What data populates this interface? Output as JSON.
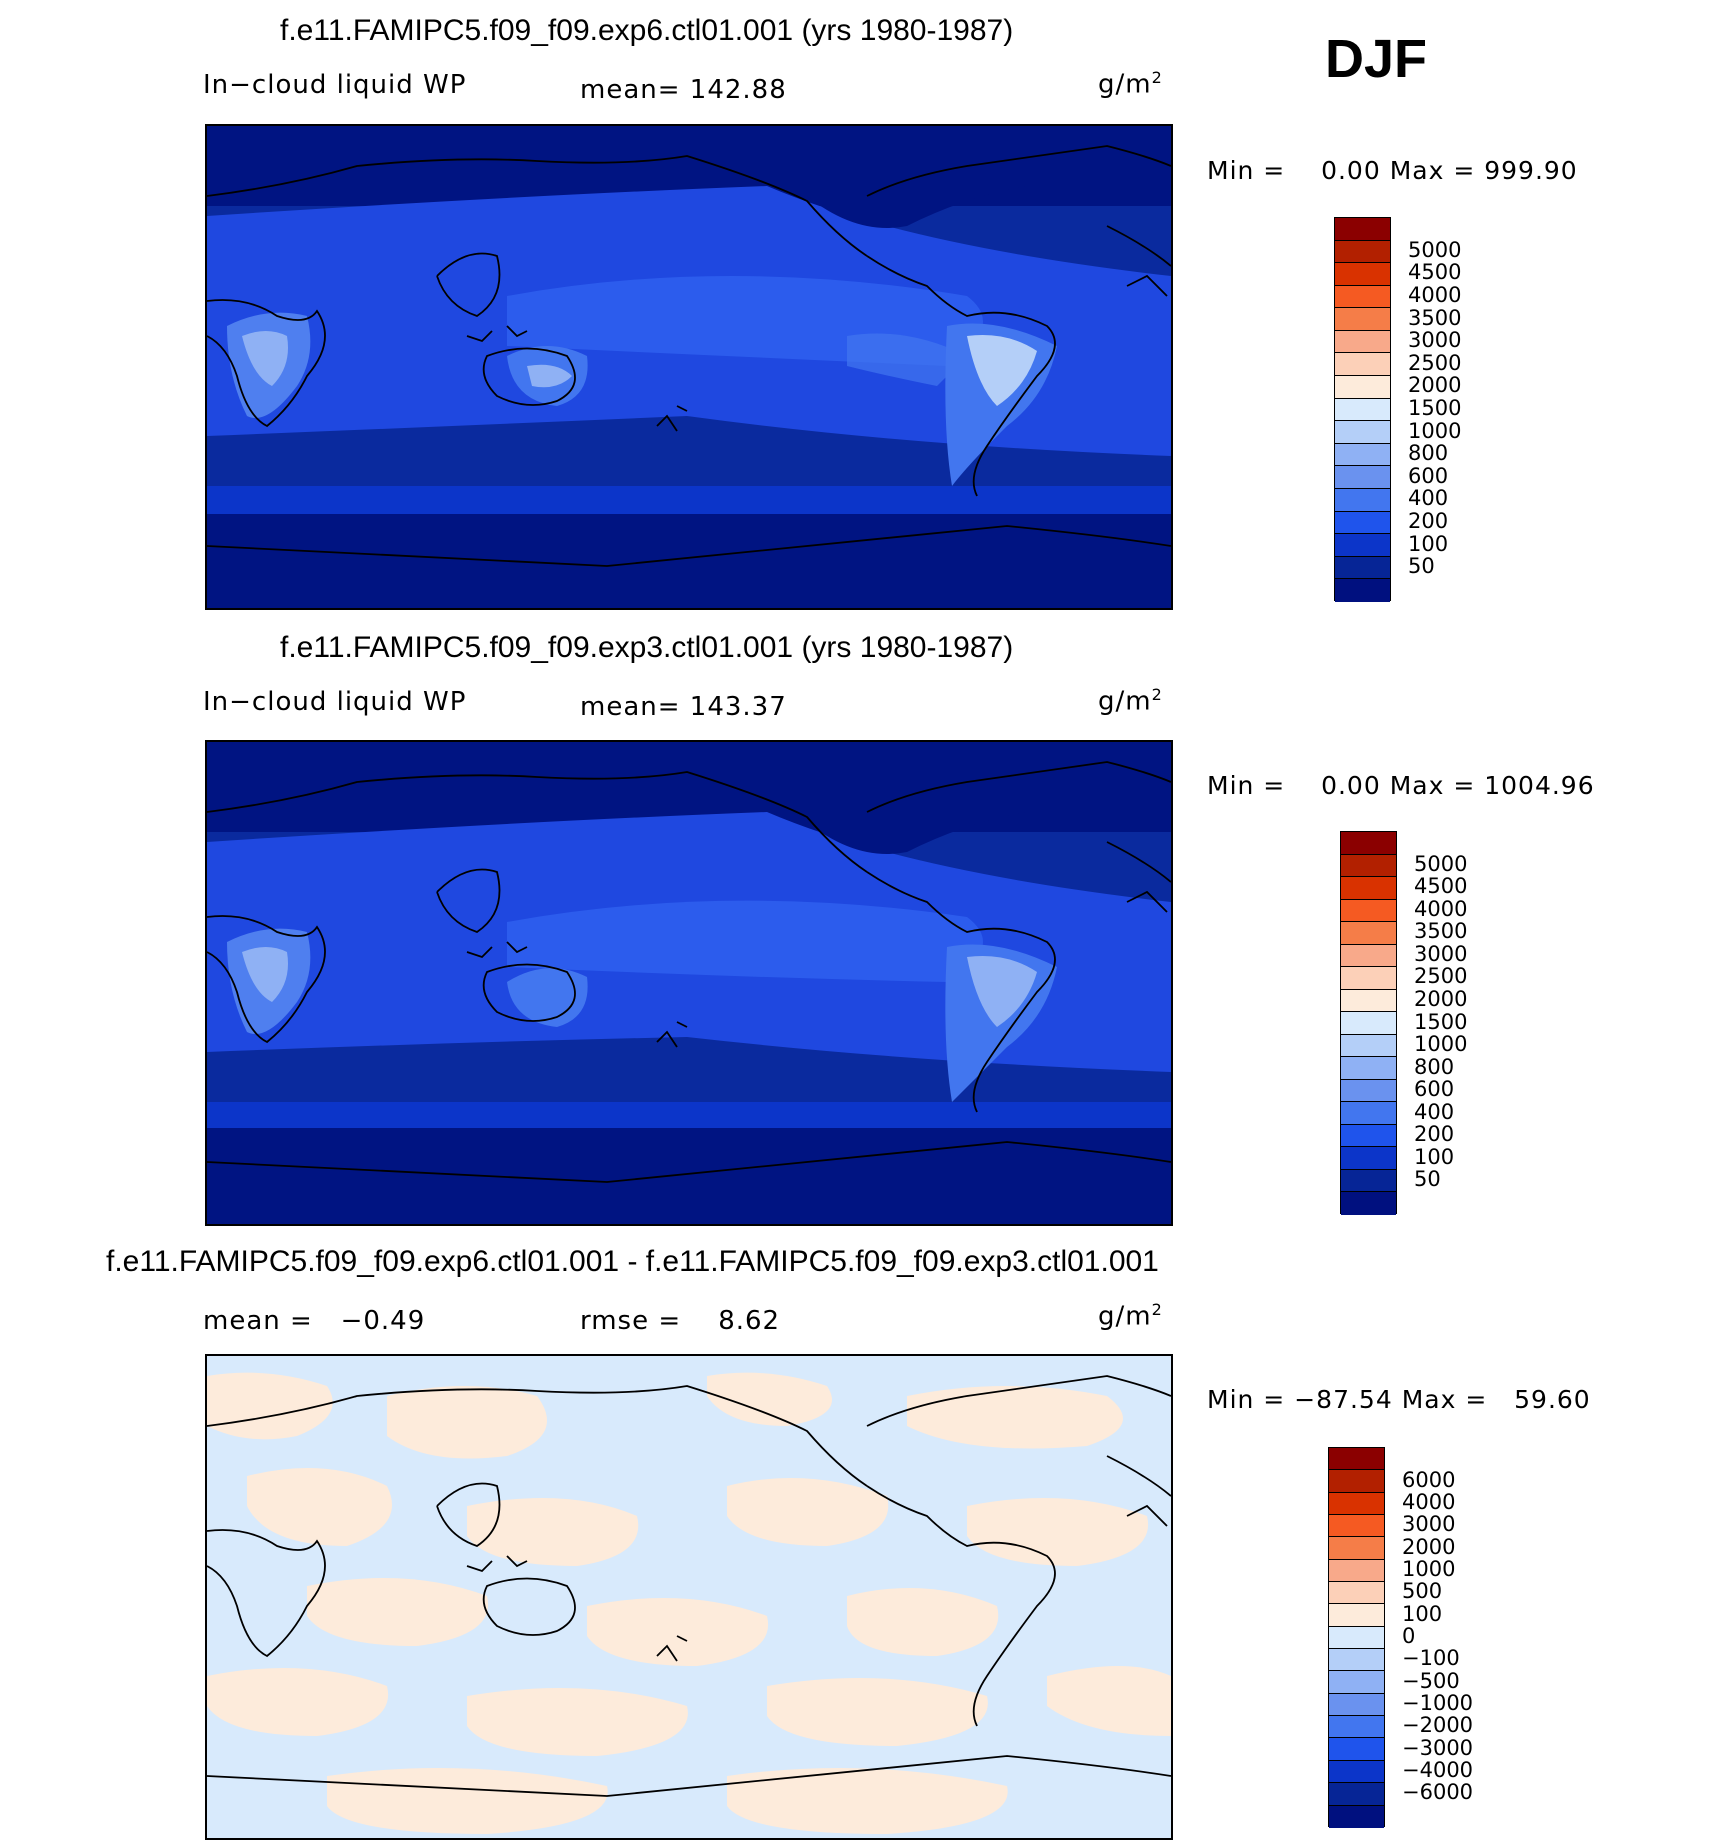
{
  "season": "DJF",
  "units_base": "g/m",
  "units_exp": "2",
  "panels": [
    {
      "title": "f.e11.FAMIPC5.f09_f09.exp6.ctl01.001 (yrs 1980-1987)",
      "variable": "In−cloud liquid WP",
      "stat": "mean= 142.88",
      "min_label": "Min =",
      "min_value": "0.00",
      "max_label": "Max =",
      "max_value": "999.90",
      "colorbar": {
        "colors": [
          "#8b0000",
          "#b22000",
          "#d93200",
          "#f55a22",
          "#f57d48",
          "#f8a98a",
          "#fcd0b8",
          "#fdebdb",
          "#d8eafc",
          "#b4cff8",
          "#8fb1f4",
          "#6a92ef",
          "#4276ef",
          "#1f54ec",
          "#0c35c9",
          "#062596",
          "#00107f"
        ],
        "labels": [
          "5000",
          "4500",
          "4000",
          "3500",
          "3000",
          "2500",
          "2000",
          "1500",
          "1000",
          "800",
          "600",
          "400",
          "200",
          "100",
          "50"
        ]
      }
    },
    {
      "title": "f.e11.FAMIPC5.f09_f09.exp3.ctl01.001 (yrs 1980-1987)",
      "variable": "In−cloud liquid WP",
      "stat": "mean= 143.37",
      "min_label": "Min =",
      "min_value": "0.00",
      "max_label": "Max =",
      "max_value": "1004.96",
      "colorbar": {
        "colors": [
          "#8b0000",
          "#b22000",
          "#d93200",
          "#f55a22",
          "#f57d48",
          "#f8a98a",
          "#fcd0b8",
          "#fdebdb",
          "#d8eafc",
          "#b4cff8",
          "#8fb1f4",
          "#6a92ef",
          "#4276ef",
          "#1f54ec",
          "#0c35c9",
          "#062596",
          "#00107f"
        ],
        "labels": [
          "5000",
          "4500",
          "4000",
          "3500",
          "3000",
          "2500",
          "2000",
          "1500",
          "1000",
          "800",
          "600",
          "400",
          "200",
          "100",
          "50"
        ]
      }
    },
    {
      "title": "f.e11.FAMIPC5.f09_f09.exp6.ctl01.001 - f.e11.FAMIPC5.f09_f09.exp3.ctl01.001",
      "variable": "mean =   −0.49",
      "stat": "rmse =    8.62",
      "min_label": "Min =",
      "min_value": "−87.54",
      "max_label": "Max =",
      "max_value": "59.60",
      "colorbar": {
        "colors": [
          "#8b0000",
          "#b22000",
          "#d93200",
          "#f55a22",
          "#f57d48",
          "#f8a98a",
          "#fcd0b8",
          "#fdebdb",
          "#d8eafc",
          "#b4cff8",
          "#8fb1f4",
          "#6a92ef",
          "#4276ef",
          "#1f54ec",
          "#0c35c9",
          "#062596",
          "#00107f"
        ],
        "labels": [
          "6000",
          "4000",
          "3000",
          "2000",
          "1000",
          "500",
          "100",
          "0",
          "−100",
          "−500",
          "−1000",
          "−2000",
          "−3000",
          "−4000",
          "−6000"
        ]
      }
    }
  ]
}
